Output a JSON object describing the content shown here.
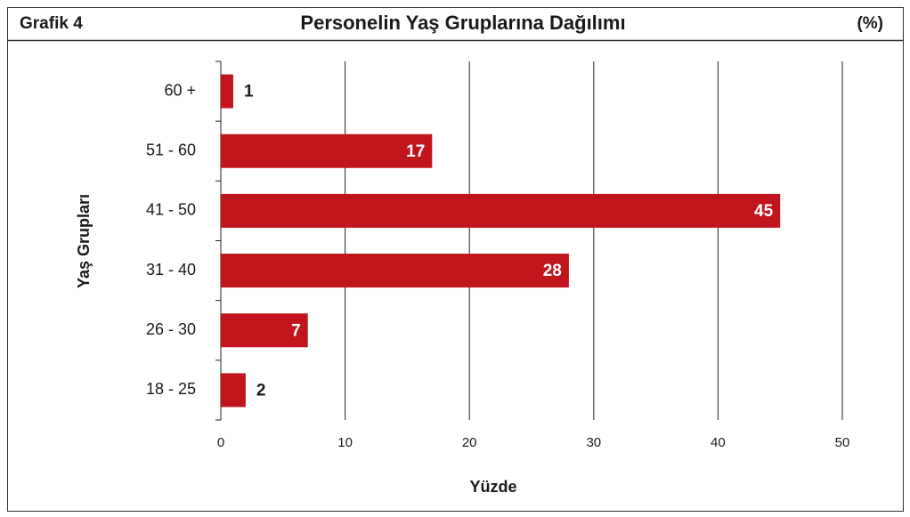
{
  "chart_data": {
    "type": "bar",
    "orientation": "horizontal",
    "label": "Grafik 4",
    "title": "Personelin Yaş Gruplarına Dağılımı",
    "unit": "(%)",
    "categories": [
      "60 +",
      "51 - 60",
      "41 - 50",
      "31 - 40",
      "26 - 30",
      "18 - 25"
    ],
    "values": [
      1,
      17,
      45,
      28,
      7,
      2
    ],
    "color": "#c1151d",
    "xlim": [
      0,
      50
    ],
    "xticks": [
      0,
      10,
      20,
      30,
      40,
      50
    ],
    "grid": true,
    "xlabel": "Yüzde",
    "ylabel": "Yaş Grupları"
  }
}
